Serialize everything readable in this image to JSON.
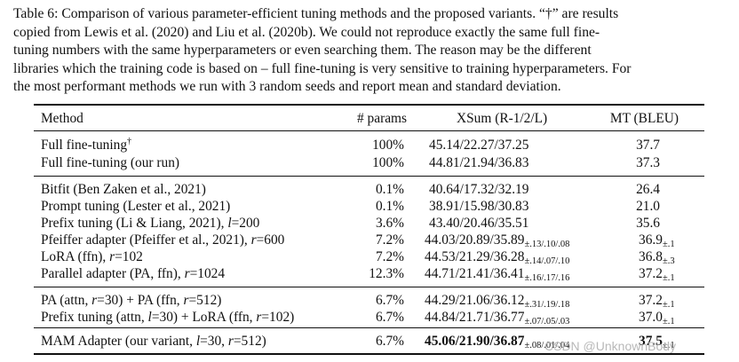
{
  "caption": {
    "lines": [
      "Table 6: Comparison of various parameter-efficient tuning methods and the proposed variants. “†” are results",
      "copied from Lewis et al. (2020) and Liu et al. (2020b). We could not reproduce exactly the same full fine-",
      "tuning numbers with the same hyperparameters or even searching them. The reason may be the different",
      "libraries which the training code is based on – full fine-tuning is very sensitive to training hyperparameters. For",
      "the most performant methods we run with 3 random seeds and report mean and standard deviation."
    ]
  },
  "table": {
    "headers": {
      "method": "Method",
      "params": "# params",
      "xsum": "XSum (R-1/2/L)",
      "mt": "MT (BLEU)"
    },
    "rows": [
      {
        "method": "Full fine-tuning",
        "method_suffix": "†",
        "params": "100%",
        "xsum": "45.14/22.27/37.25",
        "xsum_std": "",
        "mt": "37.7",
        "mt_std": ""
      },
      {
        "method": "Full fine-tuning (our run)",
        "params": "100%",
        "xsum": "44.81/21.94/36.83",
        "xsum_std": "",
        "mt": "37.3",
        "mt_std": ""
      },
      {
        "method": "Bitfit (Ben Zaken et al., 2021)",
        "params": "0.1%",
        "xsum": "40.64/17.32/32.19",
        "xsum_std": "",
        "mt": "26.4",
        "mt_std": ""
      },
      {
        "method": "Prompt tuning (Lester et al., 2021)",
        "params": "0.1%",
        "xsum": "38.91/15.98/30.83",
        "xsum_std": "",
        "mt": "21.0",
        "mt_std": ""
      },
      {
        "method": "Prefix tuning (Li & Liang, 2021), ",
        "method_var": "l",
        "method_tail": "=200",
        "params": "3.6%",
        "xsum": "43.40/20.46/35.51",
        "xsum_std": "",
        "mt": "35.6",
        "mt_std": ""
      },
      {
        "method": "Pfeiffer adapter (Pfeiffer et al., 2021), ",
        "method_var": "r",
        "method_tail": "=600",
        "params": "7.2%",
        "xsum": "44.03/20.89/35.89",
        "xsum_std": "±.13/.10/.08",
        "mt": "36.9",
        "mt_std": "±.1"
      },
      {
        "method": "LoRA (ffn), ",
        "method_var": "r",
        "method_tail": "=102",
        "params": "7.2%",
        "xsum": "44.53/21.29/36.28",
        "xsum_std": "±.14/.07/.10",
        "mt": "36.8",
        "mt_std": "±.3"
      },
      {
        "method": "Parallel adapter (PA, ffn), ",
        "method_var": "r",
        "method_tail": "=1024",
        "params": "12.3%",
        "xsum": "44.71/21.41/36.41",
        "xsum_std": "±.16/.17/.16",
        "mt": "37.2",
        "mt_std": "±.1"
      },
      {
        "method": "PA (attn, ",
        "method_var": "r",
        "method_tail": "=30) + PA (ffn, ",
        "method_var2": "r",
        "method_tail2": "=512)",
        "params": "6.7%",
        "xsum": "44.29/21.06/36.12",
        "xsum_std": "±.31/.19/.18",
        "mt": "37.2",
        "mt_std": "±.1"
      },
      {
        "method": "Prefix tuning (attn, ",
        "method_var": "l",
        "method_tail": "=30) + LoRA (ffn, ",
        "method_var2": "r",
        "method_tail2": "=102)",
        "params": "6.7%",
        "xsum": "44.84/21.71/36.77",
        "xsum_std": "±.07/.05/.03",
        "mt": "37.0",
        "mt_std": "±.1"
      },
      {
        "method": "MAM Adapter (our variant, ",
        "method_var": "l",
        "method_tail": "=30, ",
        "method_var2": "r",
        "method_tail2": "=512)",
        "params": "6.7%",
        "xsum": "45.06/21.90/36.87",
        "xsum_std": "±.08/.01/.04",
        "mt": "37.5",
        "mt_std": "±.1"
      }
    ]
  },
  "watermark": "CSDN @UnknownBody"
}
